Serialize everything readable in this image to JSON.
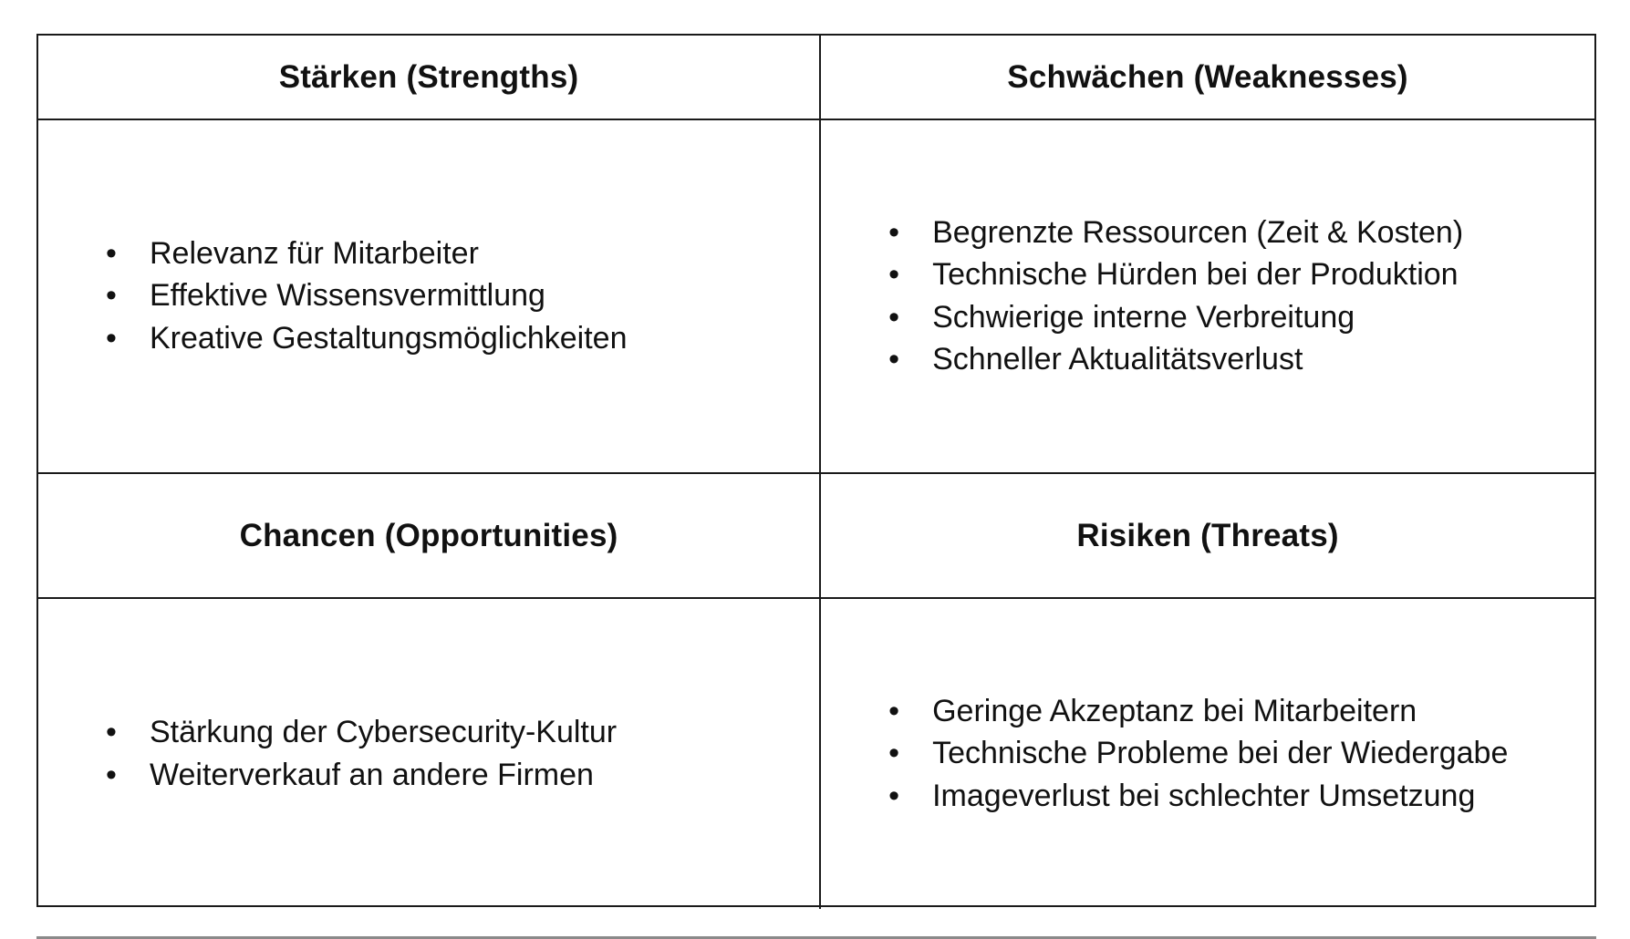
{
  "table": {
    "quadrants": [
      {
        "id": "strengths",
        "header": "Stärken (Strengths)",
        "items": [
          "Relevanz für Mitarbeiter",
          "Effektive Wissensvermittlung",
          "Kreative Gestaltungsmöglichkeiten"
        ]
      },
      {
        "id": "weaknesses",
        "header": "Schwächen (Weaknesses)",
        "items": [
          "Begrenzte Ressourcen (Zeit & Kosten)",
          "Technische Hürden bei der Produktion",
          "Schwierige interne Verbreitung",
          "Schneller Aktualitätsverlust"
        ]
      },
      {
        "id": "opportunities",
        "header": "Chancen (Opportunities)",
        "items": [
          "Stärkung der Cybersecurity-Kultur",
          "Weiterverkauf an andere Firmen"
        ]
      },
      {
        "id": "risks",
        "header": "Risiken (Threats)",
        "items": [
          "Geringe Akzeptanz bei Mitarbeitern",
          "Technische Probleme bei der Wiedergabe",
          "Imageverlust bei schlechter Umsetzung"
        ]
      }
    ],
    "colors": {
      "text": "#111111",
      "border": "#1a1a1a",
      "background": "#ffffff"
    }
  }
}
